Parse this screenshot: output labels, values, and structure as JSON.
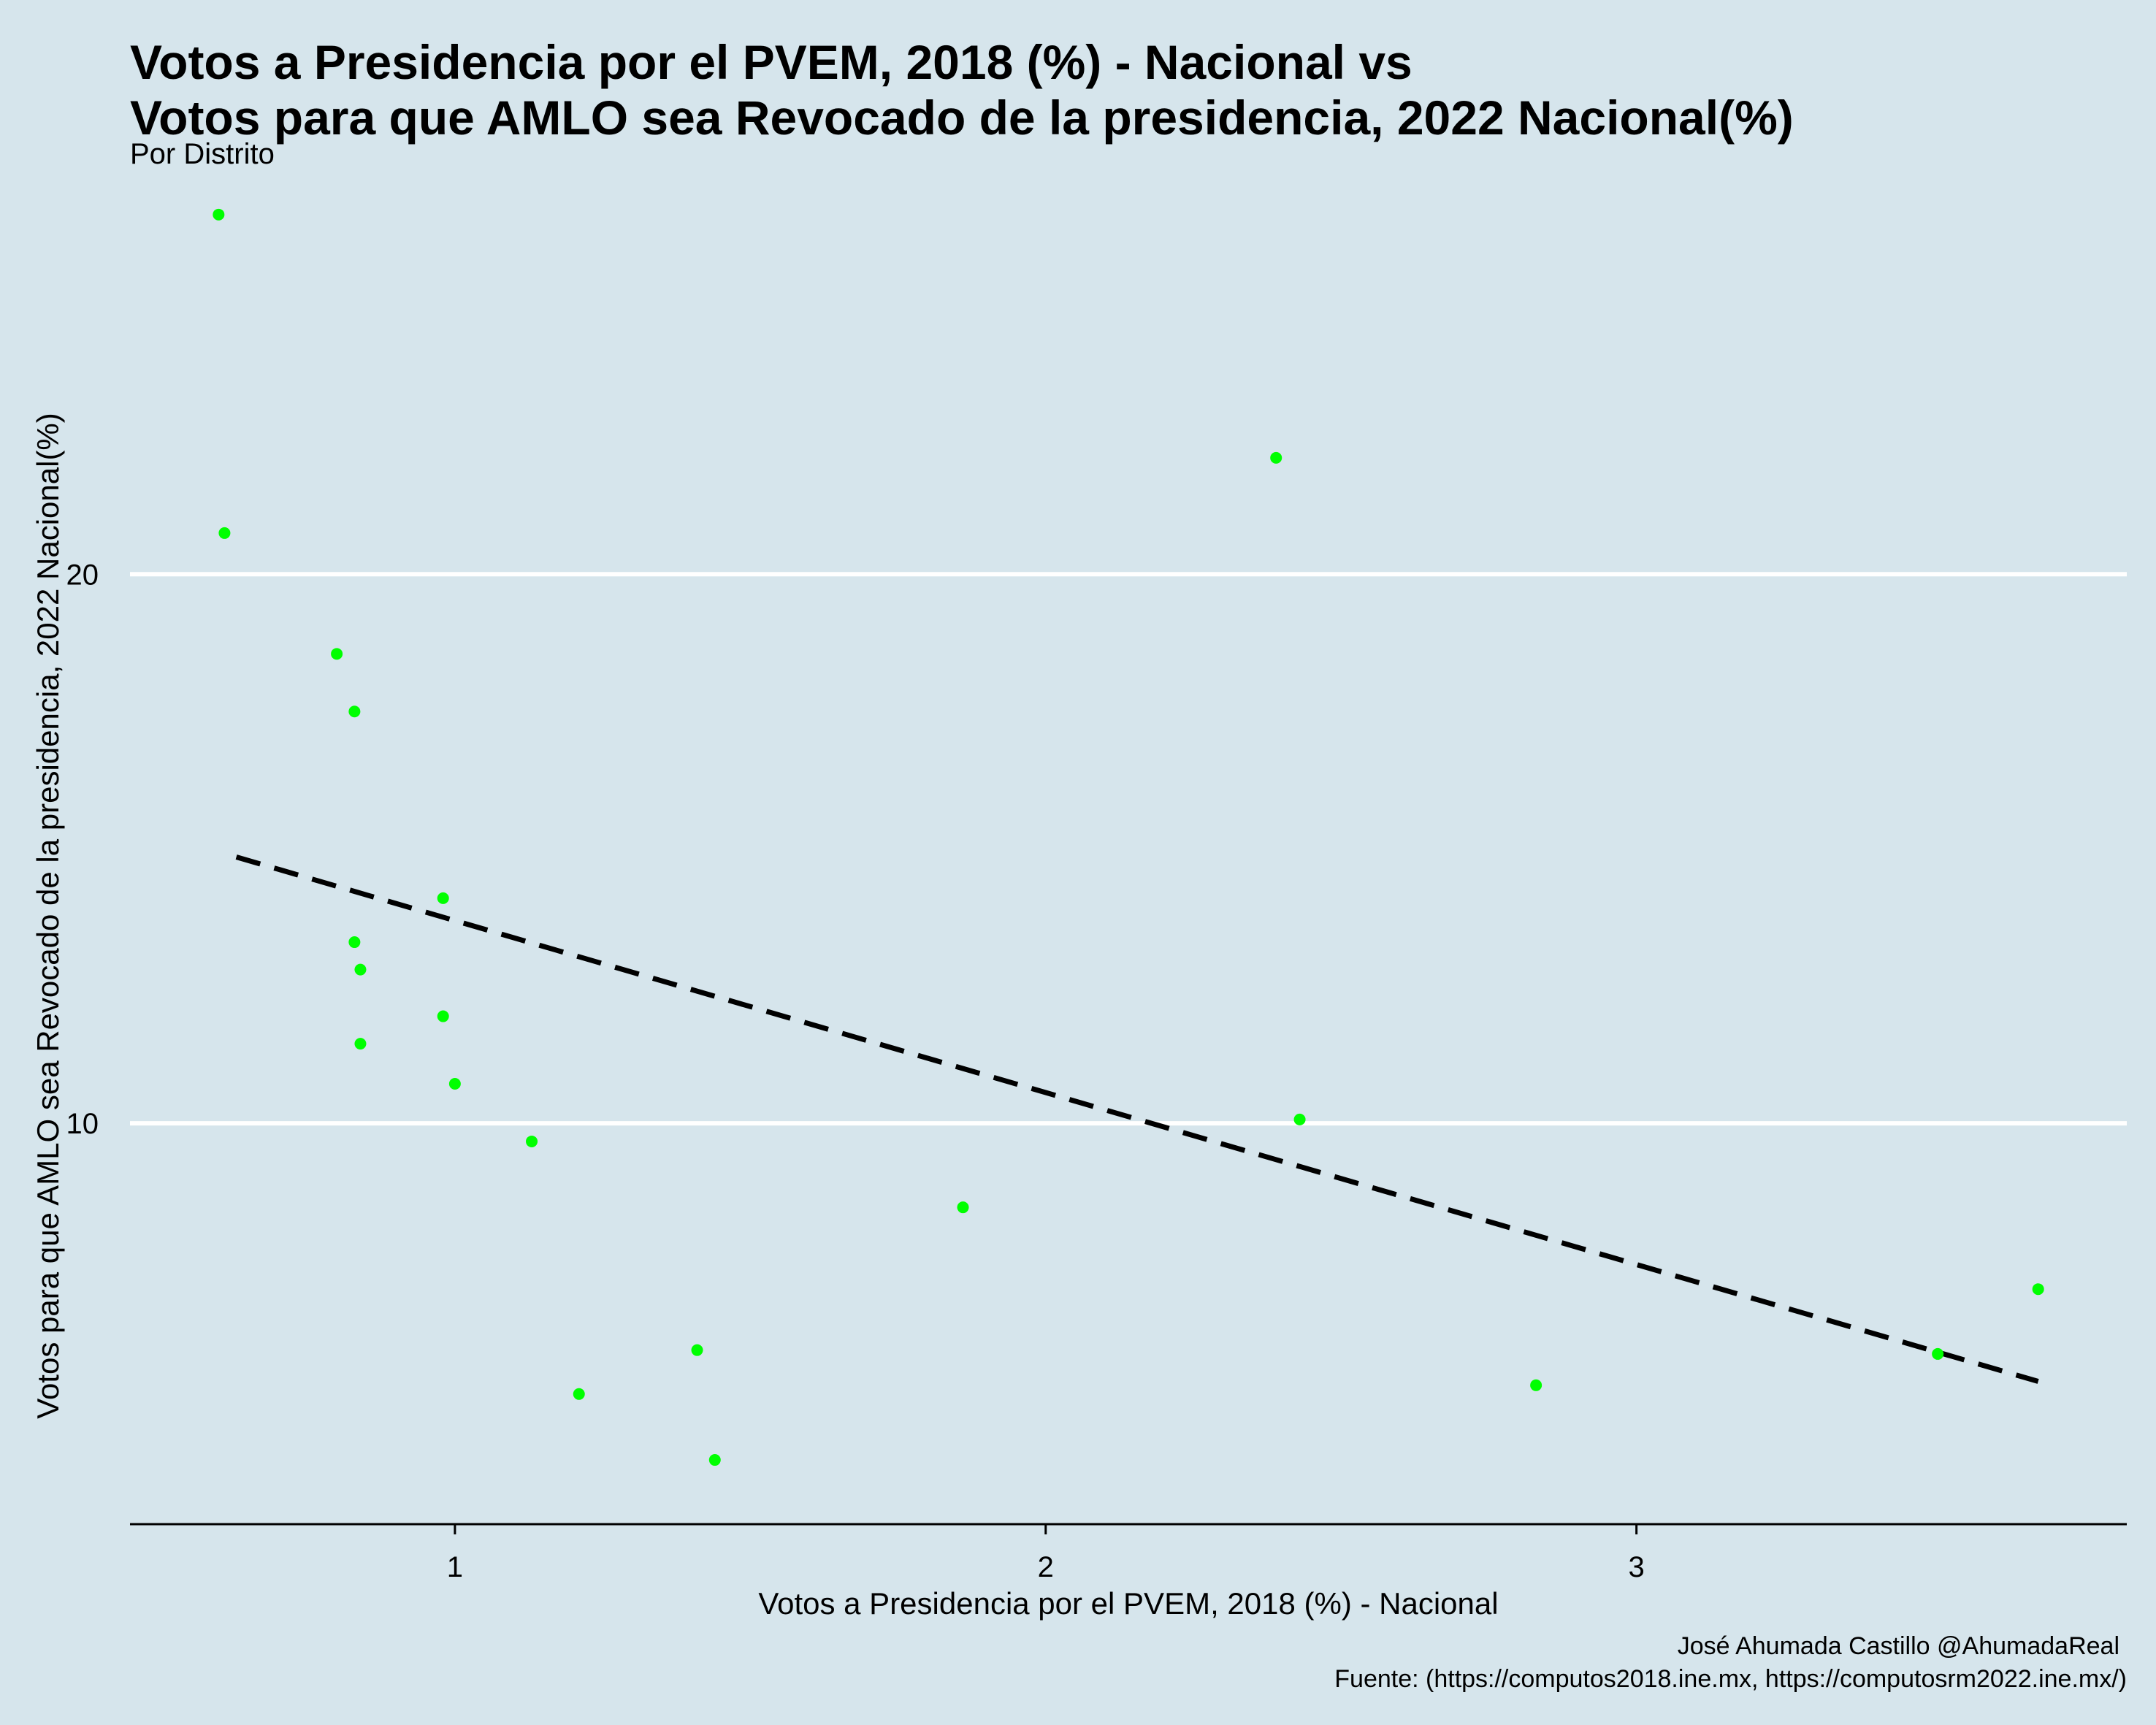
{
  "chart_data": {
    "type": "scatter",
    "title_line1": "Votos a Presidencia por el PVEM, 2018 (%) - Nacional vs",
    "title_line2": "Votos para que AMLO sea Revocado de la presidencia, 2022 Nacional(%)",
    "subtitle": "Por Distrito",
    "xlabel": "Votos a Presidencia por el PVEM, 2018 (%) - Nacional",
    "ylabel": "Votos para que AMLO sea Revocado de la presidencia, 2022 Nacional(%)",
    "caption_line1": "José Ahumada Castillo @AhumadaReal",
    "caption_line2": "Fuente: (https://computos2018.ine.mx, https://computosrm2022.ine.mx/)",
    "xlim": [
      0.45,
      3.83
    ],
    "ylim": [
      2.7,
      27.0
    ],
    "xticks": [
      1,
      2,
      3
    ],
    "xtick_labels": [
      "1",
      "2",
      "3"
    ],
    "yticks": [
      10,
      20
    ],
    "ytick_labels": [
      "10",
      "20"
    ],
    "grid": "horizontal",
    "point_color": "#00ff00",
    "trend_color": "#000000",
    "points": [
      {
        "x": 0.6,
        "y": 26.55
      },
      {
        "x": 0.61,
        "y": 20.75
      },
      {
        "x": 0.8,
        "y": 18.55
      },
      {
        "x": 0.83,
        "y": 17.5
      },
      {
        "x": 0.83,
        "y": 13.3
      },
      {
        "x": 0.84,
        "y": 12.8
      },
      {
        "x": 0.84,
        "y": 11.45
      },
      {
        "x": 0.98,
        "y": 11.95
      },
      {
        "x": 0.98,
        "y": 14.1
      },
      {
        "x": 1.0,
        "y": 10.72
      },
      {
        "x": 1.13,
        "y": 9.67
      },
      {
        "x": 1.21,
        "y": 5.07
      },
      {
        "x": 1.41,
        "y": 5.87
      },
      {
        "x": 1.44,
        "y": 3.87
      },
      {
        "x": 1.86,
        "y": 8.47
      },
      {
        "x": 2.39,
        "y": 22.12
      },
      {
        "x": 2.43,
        "y": 10.07
      },
      {
        "x": 2.83,
        "y": 5.23
      },
      {
        "x": 3.51,
        "y": 5.8
      },
      {
        "x": 3.68,
        "y": 6.98
      }
    ],
    "trend_line": {
      "x": [
        0.63,
        3.68
      ],
      "y": [
        14.85,
        5.3
      ]
    }
  }
}
